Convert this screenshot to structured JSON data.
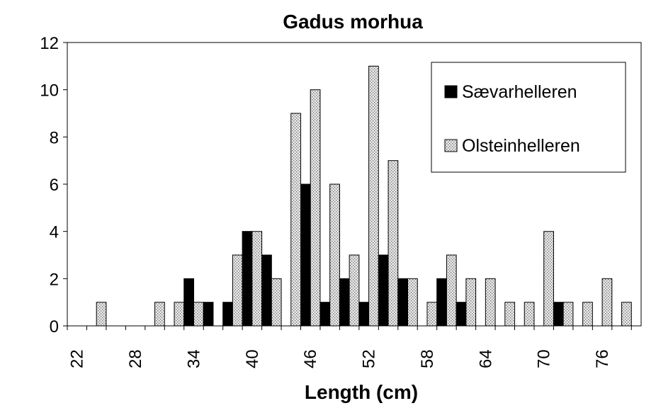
{
  "chart_data": {
    "type": "bar",
    "title": "Gadus morhua",
    "xlabel": "Length (cm)",
    "ylabel": "",
    "ylim": [
      0,
      12
    ],
    "y_ticks": [
      0,
      2,
      4,
      6,
      8,
      10,
      12
    ],
    "x_ticks": [
      "22",
      "28",
      "34",
      "40",
      "46",
      "52",
      "58",
      "64",
      "70",
      "76"
    ],
    "legend_position": "top-right",
    "grid": false,
    "categories": [
      "24",
      "26",
      "28",
      "30",
      "32",
      "34",
      "36",
      "38",
      "40",
      "42",
      "44",
      "46",
      "48",
      "50",
      "52",
      "54",
      "56",
      "58",
      "60",
      "62",
      "64",
      "66",
      "68",
      "70",
      "72",
      "74",
      "76",
      "78"
    ],
    "series": [
      {
        "name": "Sævarhelleren",
        "color": "#000000",
        "values": [
          0,
          0,
          0,
          0,
          0,
          2,
          1,
          1,
          4,
          3,
          0,
          6,
          1,
          2,
          1,
          3,
          2,
          0,
          2,
          1,
          0,
          0,
          0,
          0,
          1,
          0,
          0,
          0
        ]
      },
      {
        "name": "Olsteinhelleren",
        "color": "#dddddd",
        "values": [
          1,
          0,
          0,
          1,
          1,
          1,
          0,
          3,
          4,
          2,
          9,
          10,
          6,
          3,
          11,
          7,
          2,
          1,
          3,
          2,
          2,
          1,
          1,
          4,
          1,
          1,
          2,
          1
        ]
      }
    ]
  }
}
